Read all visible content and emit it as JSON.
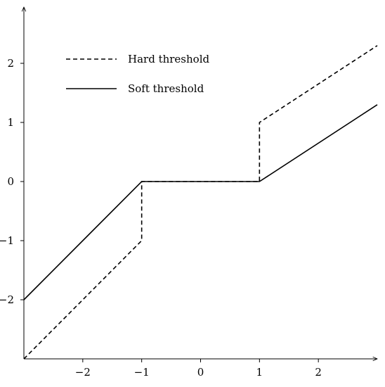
{
  "chart_data": {
    "type": "line",
    "title": "",
    "xlabel": "",
    "ylabel": "",
    "xlim": [
      -3,
      3
    ],
    "ylim": [
      -3,
      3
    ],
    "grid": false,
    "legend_position": "top-left",
    "x_ticks": [
      -2,
      -1,
      0,
      1,
      2
    ],
    "y_ticks": [
      -2,
      -1,
      0,
      1,
      2
    ],
    "x_tick_labels": [
      "−2",
      "−1",
      "0",
      "1",
      "2"
    ],
    "y_tick_labels": [
      "−2",
      "−1",
      "0",
      "1",
      "2"
    ],
    "series": [
      {
        "name": "Hard threshold",
        "style": "dashed",
        "color": "#000000",
        "x": [
          -3,
          -1,
          -1,
          1,
          1,
          3
        ],
        "y": [
          -3,
          -1,
          0,
          0,
          1,
          2.3
        ]
      },
      {
        "name": "Soft threshold",
        "style": "solid",
        "color": "#000000",
        "x": [
          -3,
          -1,
          1,
          3
        ],
        "y": [
          -2,
          0,
          0,
          1.3
        ]
      }
    ]
  }
}
